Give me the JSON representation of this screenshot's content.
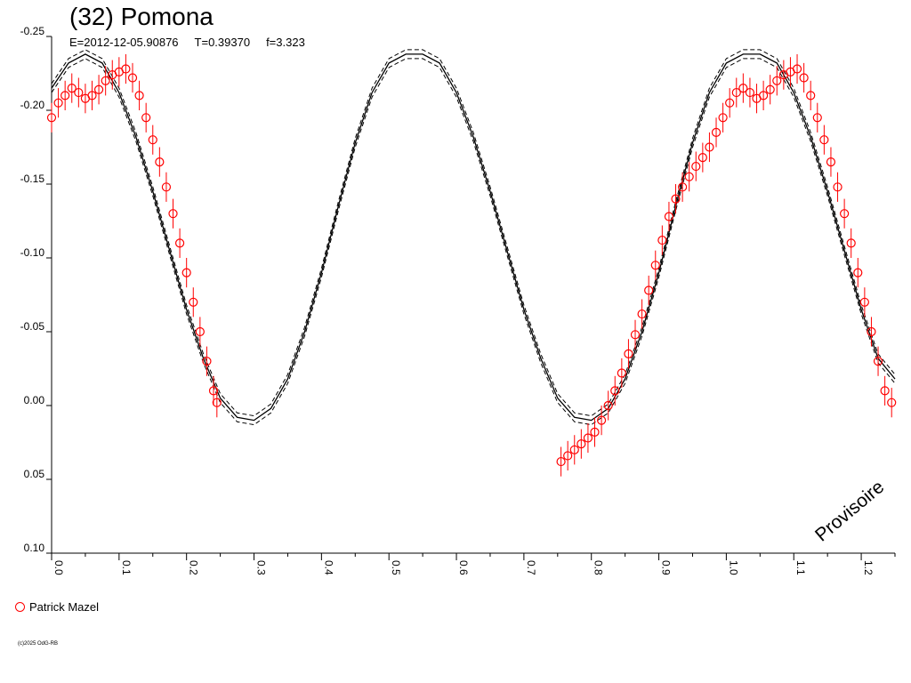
{
  "header": {
    "title": "(32) Pomona",
    "epoch": "E=2012-12-05.90876",
    "period": "T=0.39370",
    "frequency": "f=3.323"
  },
  "legend": {
    "observer": "Patrick Mazel",
    "marker_color": "#ff0000"
  },
  "footer": {
    "copyright": "(c)2025 OdG-RB"
  },
  "watermark": "Provisoire",
  "chart_data": {
    "type": "scatter",
    "title": "(32) Pomona",
    "x_range": [
      0.0,
      1.25
    ],
    "y_range": [
      -0.25,
      0.1
    ],
    "y_inverted": true,
    "x_ticks": [
      "0.0",
      "0.1",
      "0.2",
      "0.3",
      "0.4",
      "0.5",
      "0.6",
      "0.7",
      "0.8",
      "0.9",
      "1.0",
      "1.1",
      "1.2"
    ],
    "y_ticks": [
      "-0.25",
      "-0.20",
      "-0.15",
      "-0.10",
      "-0.05",
      "0.00",
      "0.05",
      "0.10"
    ],
    "model_curve": {
      "color": "#000000",
      "style": "solid with dashed envelope",
      "points": [
        [
          0.0,
          -0.215
        ],
        [
          0.025,
          -0.232
        ],
        [
          0.05,
          -0.238
        ],
        [
          0.075,
          -0.232
        ],
        [
          0.1,
          -0.212
        ],
        [
          0.125,
          -0.182
        ],
        [
          0.15,
          -0.145
        ],
        [
          0.175,
          -0.105
        ],
        [
          0.2,
          -0.065
        ],
        [
          0.225,
          -0.032
        ],
        [
          0.25,
          -0.005
        ],
        [
          0.275,
          0.008
        ],
        [
          0.3,
          0.01
        ],
        [
          0.325,
          0.002
        ],
        [
          0.35,
          -0.018
        ],
        [
          0.375,
          -0.05
        ],
        [
          0.4,
          -0.09
        ],
        [
          0.425,
          -0.135
        ],
        [
          0.45,
          -0.178
        ],
        [
          0.475,
          -0.212
        ],
        [
          0.5,
          -0.232
        ],
        [
          0.525,
          -0.238
        ],
        [
          0.55,
          -0.238
        ],
        [
          0.575,
          -0.232
        ],
        [
          0.6,
          -0.212
        ],
        [
          0.625,
          -0.182
        ],
        [
          0.65,
          -0.145
        ],
        [
          0.675,
          -0.105
        ],
        [
          0.7,
          -0.065
        ],
        [
          0.725,
          -0.032
        ],
        [
          0.75,
          -0.005
        ],
        [
          0.775,
          0.008
        ],
        [
          0.8,
          0.01
        ],
        [
          0.825,
          0.002
        ],
        [
          0.85,
          -0.018
        ],
        [
          0.875,
          -0.05
        ],
        [
          0.9,
          -0.09
        ],
        [
          0.925,
          -0.135
        ],
        [
          0.95,
          -0.178
        ],
        [
          0.975,
          -0.212
        ],
        [
          1.0,
          -0.232
        ],
        [
          1.025,
          -0.238
        ],
        [
          1.05,
          -0.238
        ],
        [
          1.075,
          -0.232
        ],
        [
          1.1,
          -0.212
        ],
        [
          1.125,
          -0.182
        ],
        [
          1.15,
          -0.145
        ],
        [
          1.175,
          -0.105
        ],
        [
          1.2,
          -0.065
        ],
        [
          1.225,
          -0.032
        ],
        [
          1.25,
          -0.018
        ]
      ]
    },
    "series": [
      {
        "name": "Patrick Mazel",
        "color": "#ff0000",
        "marker": "open-circle",
        "error": 0.01,
        "points": [
          [
            0.0,
            -0.195
          ],
          [
            0.01,
            -0.205
          ],
          [
            0.02,
            -0.21
          ],
          [
            0.03,
            -0.215
          ],
          [
            0.04,
            -0.212
          ],
          [
            0.05,
            -0.208
          ],
          [
            0.06,
            -0.21
          ],
          [
            0.07,
            -0.214
          ],
          [
            0.08,
            -0.22
          ],
          [
            0.09,
            -0.224
          ],
          [
            0.1,
            -0.226
          ],
          [
            0.11,
            -0.228
          ],
          [
            0.12,
            -0.222
          ],
          [
            0.13,
            -0.21
          ],
          [
            0.14,
            -0.195
          ],
          [
            0.15,
            -0.18
          ],
          [
            0.16,
            -0.165
          ],
          [
            0.17,
            -0.148
          ],
          [
            0.18,
            -0.13
          ],
          [
            0.19,
            -0.11
          ],
          [
            0.2,
            -0.09
          ],
          [
            0.21,
            -0.07
          ],
          [
            0.22,
            -0.05
          ],
          [
            0.23,
            -0.03
          ],
          [
            0.24,
            -0.01
          ],
          [
            0.245,
            -0.002
          ],
          [
            0.755,
            0.038
          ],
          [
            0.765,
            0.034
          ],
          [
            0.775,
            0.03
          ],
          [
            0.785,
            0.026
          ],
          [
            0.795,
            0.022
          ],
          [
            0.805,
            0.018
          ],
          [
            0.815,
            0.01
          ],
          [
            0.825,
            0.0
          ],
          [
            0.835,
            -0.01
          ],
          [
            0.845,
            -0.022
          ],
          [
            0.855,
            -0.035
          ],
          [
            0.865,
            -0.048
          ],
          [
            0.875,
            -0.062
          ],
          [
            0.885,
            -0.078
          ],
          [
            0.895,
            -0.095
          ],
          [
            0.905,
            -0.112
          ],
          [
            0.915,
            -0.128
          ],
          [
            0.925,
            -0.14
          ],
          [
            0.935,
            -0.148
          ],
          [
            0.945,
            -0.155
          ],
          [
            0.955,
            -0.162
          ],
          [
            0.965,
            -0.168
          ],
          [
            0.975,
            -0.175
          ],
          [
            0.985,
            -0.185
          ],
          [
            0.995,
            -0.195
          ],
          [
            1.005,
            -0.205
          ],
          [
            1.015,
            -0.212
          ],
          [
            1.025,
            -0.215
          ],
          [
            1.035,
            -0.212
          ],
          [
            1.045,
            -0.208
          ],
          [
            1.055,
            -0.21
          ],
          [
            1.065,
            -0.214
          ],
          [
            1.075,
            -0.22
          ],
          [
            1.085,
            -0.224
          ],
          [
            1.095,
            -0.226
          ],
          [
            1.105,
            -0.228
          ],
          [
            1.115,
            -0.222
          ],
          [
            1.125,
            -0.21
          ],
          [
            1.135,
            -0.195
          ],
          [
            1.145,
            -0.18
          ],
          [
            1.155,
            -0.165
          ],
          [
            1.165,
            -0.148
          ],
          [
            1.175,
            -0.13
          ],
          [
            1.185,
            -0.11
          ],
          [
            1.195,
            -0.09
          ],
          [
            1.205,
            -0.07
          ],
          [
            1.215,
            -0.05
          ],
          [
            1.225,
            -0.03
          ],
          [
            1.235,
            -0.01
          ],
          [
            1.245,
            -0.002
          ]
        ]
      }
    ]
  }
}
